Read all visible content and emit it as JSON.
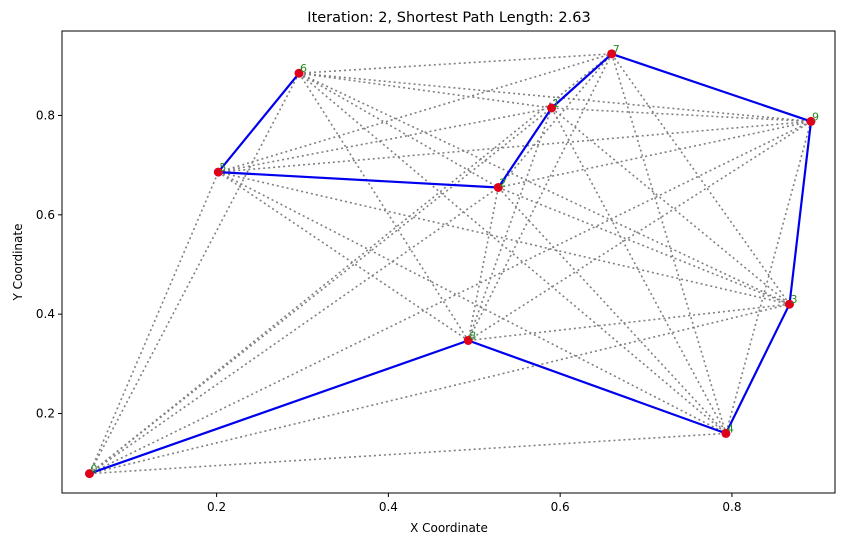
{
  "chart_data": {
    "type": "scatter",
    "title": "Iteration: 2, Shortest Path Length: 2.63",
    "xlabel": "X Coordinate",
    "ylabel": "Y Coordinate",
    "xlim": [
      0.02,
      0.92
    ],
    "ylim": [
      0.04,
      0.97
    ],
    "xticks": [
      0.2,
      0.4,
      0.6,
      0.8
    ],
    "xtick_labels": [
      "0.2",
      "0.4",
      "0.6",
      "0.8"
    ],
    "yticks": [
      0.2,
      0.4,
      0.6,
      0.8
    ],
    "ytick_labels": [
      "0.2",
      "0.4",
      "0.6",
      "0.8"
    ],
    "grid": false,
    "points": [
      {
        "id": "p1",
        "label": "1",
        "x": 0.59,
        "y": 0.815
      },
      {
        "id": "p2",
        "label": "2",
        "x": 0.528,
        "y": 0.655
      },
      {
        "id": "p3",
        "label": "3",
        "x": 0.867,
        "y": 0.42
      },
      {
        "id": "p4",
        "label": "4",
        "x": 0.793,
        "y": 0.16
      },
      {
        "id": "p5",
        "label": "5",
        "x": 0.202,
        "y": 0.686
      },
      {
        "id": "p6",
        "label": "6",
        "x": 0.296,
        "y": 0.885
      },
      {
        "id": "p7",
        "label": "7",
        "x": 0.66,
        "y": 0.924
      },
      {
        "id": "p8",
        "label": "8",
        "x": 0.493,
        "y": 0.347
      },
      {
        "id": "p9",
        "label": "9",
        "x": 0.892,
        "y": 0.788
      },
      {
        "id": "p0",
        "label": "0",
        "x": 0.052,
        "y": 0.079
      }
    ],
    "tour": [
      "p1",
      "p7",
      "p9",
      "p3",
      "p4",
      "p8",
      "p0"
    ],
    "tour2": [
      "p6",
      "p5",
      "p2",
      "p1"
    ],
    "edges": [
      [
        "p0",
        "p1"
      ],
      [
        "p0",
        "p2"
      ],
      [
        "p0",
        "p3"
      ],
      [
        "p0",
        "p4"
      ],
      [
        "p0",
        "p5"
      ],
      [
        "p0",
        "p6"
      ],
      [
        "p0",
        "p7"
      ],
      [
        "p0",
        "p9"
      ],
      [
        "p6",
        "p1"
      ],
      [
        "p6",
        "p2"
      ],
      [
        "p6",
        "p3"
      ],
      [
        "p6",
        "p4"
      ],
      [
        "p6",
        "p7"
      ],
      [
        "p6",
        "p8"
      ],
      [
        "p6",
        "p9"
      ],
      [
        "p5",
        "p1"
      ],
      [
        "p5",
        "p3"
      ],
      [
        "p5",
        "p4"
      ],
      [
        "p5",
        "p7"
      ],
      [
        "p5",
        "p8"
      ],
      [
        "p5",
        "p9"
      ],
      [
        "p1",
        "p2"
      ],
      [
        "p1",
        "p3"
      ],
      [
        "p1",
        "p4"
      ],
      [
        "p1",
        "p8"
      ],
      [
        "p1",
        "p9"
      ],
      [
        "p2",
        "p3"
      ],
      [
        "p2",
        "p4"
      ],
      [
        "p2",
        "p7"
      ],
      [
        "p2",
        "p8"
      ],
      [
        "p2",
        "p9"
      ],
      [
        "p7",
        "p3"
      ],
      [
        "p7",
        "p4"
      ],
      [
        "p7",
        "p8"
      ],
      [
        "p9",
        "p4"
      ],
      [
        "p9",
        "p8"
      ],
      [
        "p3",
        "p8"
      ]
    ],
    "colors": {
      "tour": "#0000ee",
      "edge": "#808080",
      "point": "#e0001b",
      "label": "#228b22"
    }
  }
}
